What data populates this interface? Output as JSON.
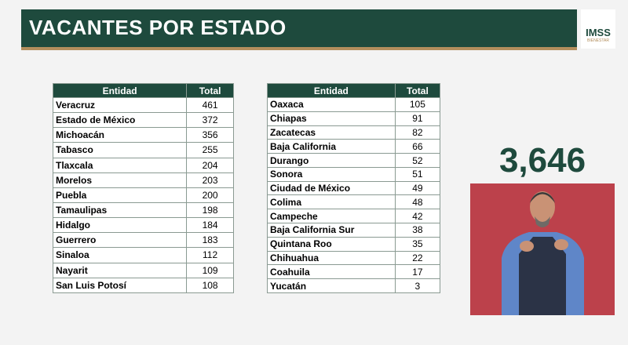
{
  "header": {
    "title": "VACANTES POR ESTADO",
    "logo": "IMSS",
    "logo_subtitle": "BIENESTAR"
  },
  "tables": [
    {
      "columns": [
        "Entidad",
        "Total"
      ],
      "rows": [
        [
          "Veracruz",
          461
        ],
        [
          "Estado de México",
          372
        ],
        [
          "Michoacán",
          356
        ],
        [
          "Tabasco",
          255
        ],
        [
          "Tlaxcala",
          204
        ],
        [
          "Morelos",
          203
        ],
        [
          "Puebla",
          200
        ],
        [
          "Tamaulipas",
          198
        ],
        [
          "Hidalgo",
          184
        ],
        [
          "Guerrero",
          183
        ],
        [
          "Sinaloa",
          112
        ],
        [
          "Nayarit",
          109
        ],
        [
          "San Luis Potosí",
          108
        ]
      ]
    },
    {
      "columns": [
        "Entidad",
        "Total"
      ],
      "rows": [
        [
          "Oaxaca",
          105
        ],
        [
          "Chiapas",
          91
        ],
        [
          "Zacatecas",
          82
        ],
        [
          "Baja California",
          66
        ],
        [
          "Durango",
          52
        ],
        [
          "Sonora",
          51
        ],
        [
          "Ciudad de México",
          49
        ],
        [
          "Colima",
          48
        ],
        [
          "Campeche",
          42
        ],
        [
          "Baja California Sur",
          38
        ],
        [
          "Quintana Roo",
          35
        ],
        [
          "Chihuahua",
          22
        ],
        [
          "Coahuila",
          17
        ],
        [
          "Yucatán",
          3
        ]
      ]
    }
  ],
  "total": "3,646"
}
